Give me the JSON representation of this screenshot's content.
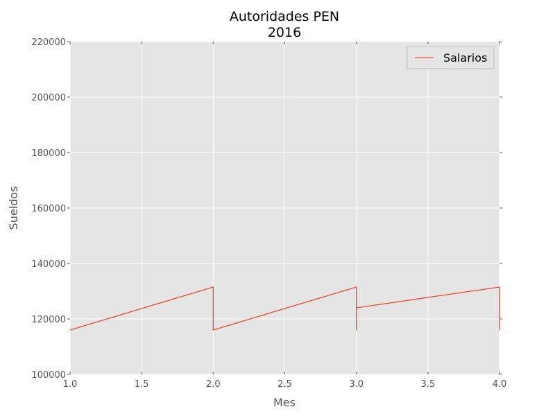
{
  "chart_data": {
    "type": "line",
    "title": [
      "Autoridades PEN",
      "2016"
    ],
    "xlabel": "Mes",
    "ylabel": "Sueldos",
    "xlim": [
      1.0,
      4.0
    ],
    "ylim": [
      100000,
      220000
    ],
    "xticks": [
      "1.0",
      "1.5",
      "2.0",
      "2.5",
      "3.0",
      "3.5",
      "4.0"
    ],
    "yticks": [
      "100000",
      "120000",
      "140000",
      "160000",
      "180000",
      "200000",
      "220000"
    ],
    "grid": true,
    "legend_position": "top-right",
    "background_color": "#e5e5e5",
    "grid_color": "#ffffff",
    "series": [
      {
        "name": "Salarios",
        "color": "#e24a33",
        "x": [
          1.0,
          2.0,
          2.0,
          2.0,
          2.0,
          3.0,
          3.0,
          3.0,
          3.0,
          4.0,
          4.0,
          4.0
        ],
        "y": [
          116000,
          131500,
          122000,
          124000,
          116000,
          131500,
          116000,
          124000,
          124000,
          131500,
          116000,
          124000
        ]
      }
    ]
  }
}
